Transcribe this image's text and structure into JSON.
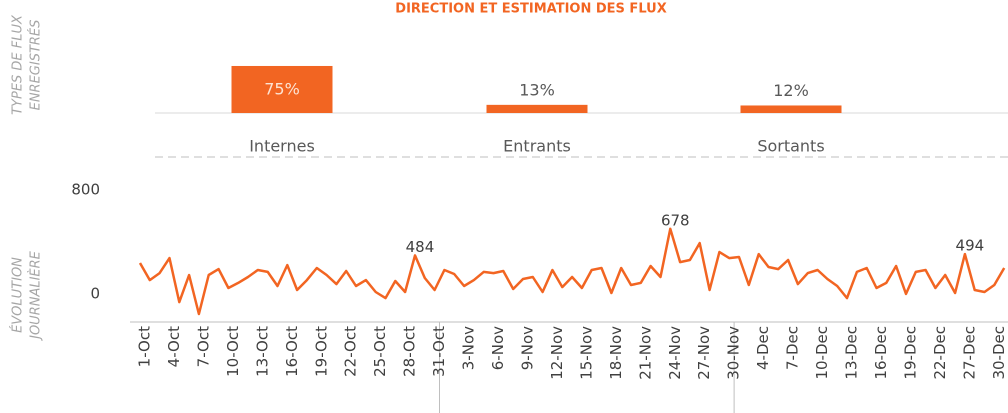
{
  "chart_data": [
    {
      "type": "bar",
      "title": "DIRECTION ET ESTIMATION DES FLUX",
      "y_label": [
        "TYPES DE FLUX",
        "ENREGISTRÉS"
      ],
      "categories": [
        "Internes",
        "Entrants",
        "Sortants"
      ],
      "values": [
        75,
        13,
        12
      ],
      "value_labels": [
        "75%",
        "13%",
        "12%"
      ],
      "color": "#f26522"
    },
    {
      "type": "line",
      "y_label": [
        "ÉVOLUTION",
        "JOURNALIÈRE"
      ],
      "color": "#f26522",
      "ylim": [
        0,
        800
      ],
      "yticks": [
        0,
        800
      ],
      "labeled": [
        28,
        54,
        84
      ],
      "categories": [
        "1-Oct",
        null,
        null,
        "4-Oct",
        null,
        null,
        "7-Oct",
        null,
        null,
        "10-Oct",
        null,
        null,
        "13-Oct",
        null,
        null,
        "16-Oct",
        null,
        null,
        "19-Oct",
        null,
        null,
        "22-Oct",
        null,
        null,
        "25-Oct",
        null,
        null,
        "28-Oct",
        null,
        null,
        "31-Oct",
        null,
        null,
        "3-Nov",
        null,
        null,
        "6-Nov",
        null,
        null,
        "9-Nov",
        null,
        null,
        "12-Nov",
        null,
        null,
        "15-Nov",
        null,
        null,
        "18-Nov",
        null,
        null,
        "21-Nov",
        null,
        null,
        "24-Nov",
        null,
        null,
        "27-Nov",
        null,
        null,
        "30-Nov",
        null,
        null,
        "4-Dec",
        null,
        null,
        "7-Dec",
        null,
        null,
        "10-Dec",
        null,
        null,
        "13-Dec",
        null,
        null,
        "16-Dec",
        null,
        null,
        "19-Dec",
        null,
        null,
        "22-Dec",
        null,
        null,
        "27-Dec",
        null,
        null,
        "30-Dec",
        null
      ],
      "values": [
        429,
        305,
        356,
        465,
        145,
        342,
        58,
        342,
        385,
        247,
        284,
        327,
        378,
        364,
        262,
        414,
        233,
        305,
        393,
        342,
        276,
        371,
        262,
        305,
        218,
        174,
        298,
        218,
        484,
        320,
        233,
        378,
        349,
        262,
        305,
        364,
        356,
        371,
        240,
        313,
        327,
        218,
        378,
        254,
        327,
        247,
        378,
        393,
        211,
        393,
        269,
        284,
        407,
        327,
        678,
        436,
        451,
        574,
        233,
        509,
        465,
        473,
        269,
        494,
        400,
        385,
        451,
        276,
        356,
        378,
        313,
        262,
        174,
        364,
        393,
        247,
        284,
        407,
        204,
        364,
        378,
        247,
        342,
        211,
        494,
        233,
        218,
        269,
        393
      ],
      "separators": [
        30,
        60
      ]
    }
  ]
}
